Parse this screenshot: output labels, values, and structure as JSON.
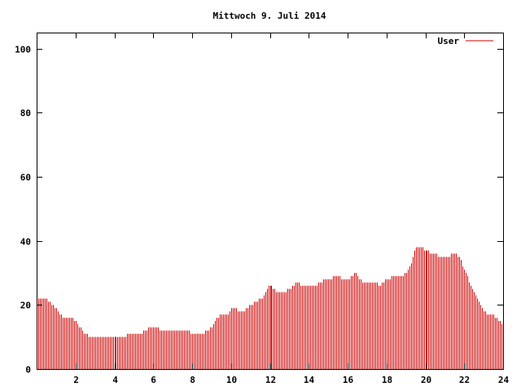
{
  "chart_data": {
    "type": "bar",
    "title": "Mittwoch 9. Juli 2014",
    "xlabel": "",
    "ylabel": "",
    "xlim": [
      0,
      24
    ],
    "ylim": [
      0,
      105
    ],
    "x_ticks": [
      2,
      4,
      6,
      8,
      10,
      12,
      14,
      16,
      18,
      20,
      22,
      24
    ],
    "x_tick_labels": [
      "2",
      "4",
      "6",
      "8",
      "10",
      "12",
      "14",
      "16",
      "18",
      "20",
      "22",
      "24"
    ],
    "y_ticks": [
      0,
      20,
      40,
      60,
      80,
      100
    ],
    "y_tick_labels": [
      "0",
      "20",
      "40",
      "60",
      "80",
      "100"
    ],
    "grid": false,
    "legend": "top-right",
    "color": "#cc0000",
    "series": [
      {
        "name": "User",
        "keypoints": [
          [
            0.0,
            22
          ],
          [
            0.4,
            22
          ],
          [
            0.6,
            21
          ],
          [
            0.8,
            20
          ],
          [
            1.0,
            19
          ],
          [
            1.2,
            17
          ],
          [
            1.4,
            16
          ],
          [
            1.8,
            16
          ],
          [
            2.0,
            15
          ],
          [
            2.2,
            13
          ],
          [
            2.4,
            11
          ],
          [
            2.8,
            10
          ],
          [
            4.4,
            10
          ],
          [
            4.8,
            11
          ],
          [
            5.4,
            11
          ],
          [
            5.6,
            12
          ],
          [
            5.8,
            13
          ],
          [
            6.2,
            13
          ],
          [
            6.4,
            12
          ],
          [
            7.8,
            12
          ],
          [
            7.9,
            11
          ],
          [
            8.4,
            11
          ],
          [
            8.8,
            12
          ],
          [
            9.0,
            13
          ],
          [
            9.2,
            15
          ],
          [
            9.4,
            17
          ],
          [
            9.6,
            17
          ],
          [
            9.8,
            17
          ],
          [
            10.0,
            19
          ],
          [
            10.2,
            19
          ],
          [
            10.4,
            18
          ],
          [
            10.6,
            18
          ],
          [
            10.8,
            19
          ],
          [
            11.0,
            20
          ],
          [
            11.2,
            21
          ],
          [
            11.6,
            22
          ],
          [
            11.8,
            25
          ],
          [
            12.0,
            26
          ],
          [
            12.2,
            25
          ],
          [
            12.4,
            24
          ],
          [
            12.8,
            24
          ],
          [
            13.0,
            25
          ],
          [
            13.2,
            26
          ],
          [
            13.4,
            27
          ],
          [
            13.6,
            26
          ],
          [
            14.4,
            26
          ],
          [
            14.6,
            27
          ],
          [
            14.8,
            28
          ],
          [
            15.0,
            28
          ],
          [
            15.4,
            29
          ],
          [
            15.8,
            28
          ],
          [
            16.0,
            28
          ],
          [
            16.2,
            29
          ],
          [
            16.4,
            30
          ],
          [
            16.6,
            28
          ],
          [
            16.8,
            27
          ],
          [
            17.4,
            27
          ],
          [
            17.6,
            26
          ],
          [
            17.8,
            27
          ],
          [
            18.0,
            28
          ],
          [
            18.4,
            29
          ],
          [
            18.8,
            29
          ],
          [
            19.0,
            30
          ],
          [
            19.2,
            32
          ],
          [
            19.4,
            37
          ],
          [
            19.6,
            38
          ],
          [
            19.8,
            38
          ],
          [
            20.0,
            37
          ],
          [
            20.4,
            36
          ],
          [
            20.8,
            35
          ],
          [
            21.2,
            35
          ],
          [
            21.4,
            36
          ],
          [
            21.6,
            36
          ],
          [
            21.8,
            34
          ],
          [
            22.0,
            31
          ],
          [
            22.2,
            28
          ],
          [
            22.4,
            25
          ],
          [
            22.6,
            23
          ],
          [
            22.8,
            20
          ],
          [
            23.0,
            18
          ],
          [
            23.2,
            17
          ],
          [
            23.4,
            17
          ],
          [
            23.6,
            16
          ],
          [
            23.8,
            15
          ],
          [
            24.0,
            14
          ]
        ]
      }
    ]
  }
}
